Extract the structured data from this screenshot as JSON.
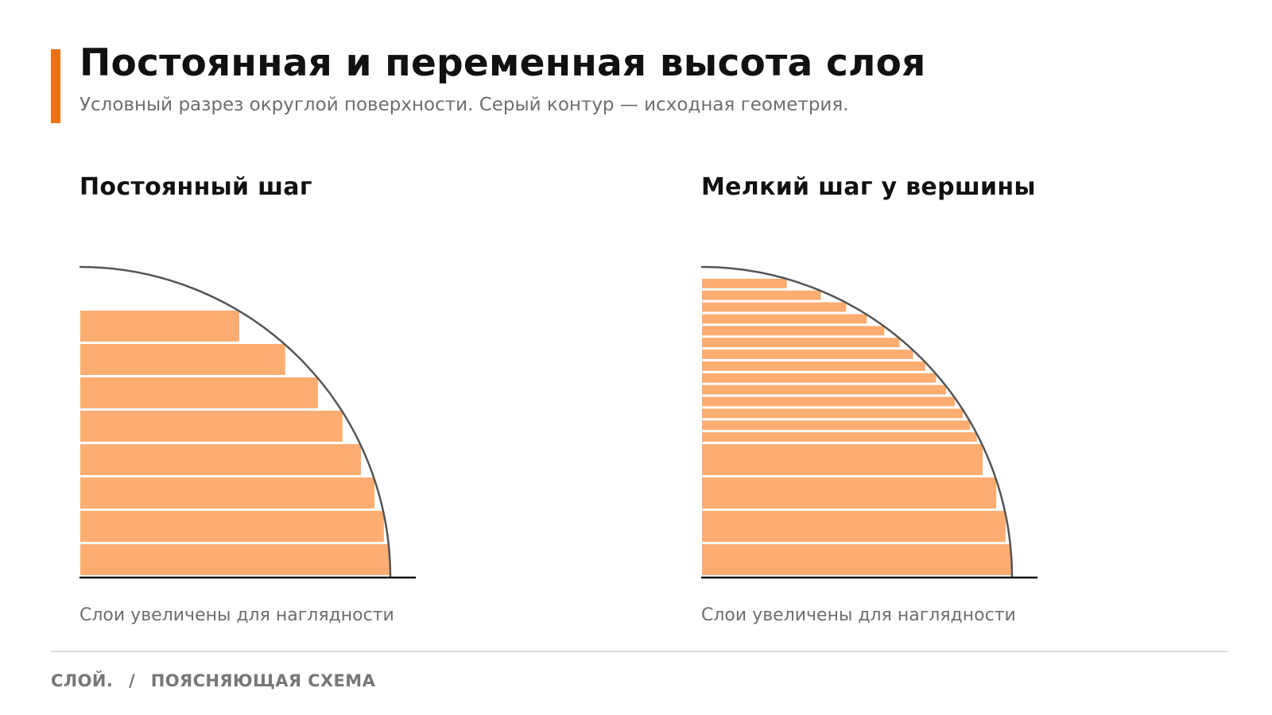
{
  "header": {
    "title": "Постоянная и переменная высота слоя",
    "subtitle": "Условный разрез округлой поверхности. Серый контур — исходная геометрия."
  },
  "panels": [
    {
      "title": "Постоянный шаг",
      "note": "Слои увеличены для наглядности"
    },
    {
      "title": "Мелкий шаг у вершины",
      "note": "Слои увеличены для наглядности"
    }
  ],
  "footer": {
    "brand": "СЛОЙ.",
    "separator": "/",
    "section": "ПОЯСНЯЮЩАЯ СХЕМА"
  },
  "colors": {
    "accent": "#f07010",
    "layer_fill": "#fdad72",
    "contour": "#555555",
    "baseline": "#111111",
    "text_primary": "#111111",
    "text_secondary": "#6e6e6e"
  }
}
